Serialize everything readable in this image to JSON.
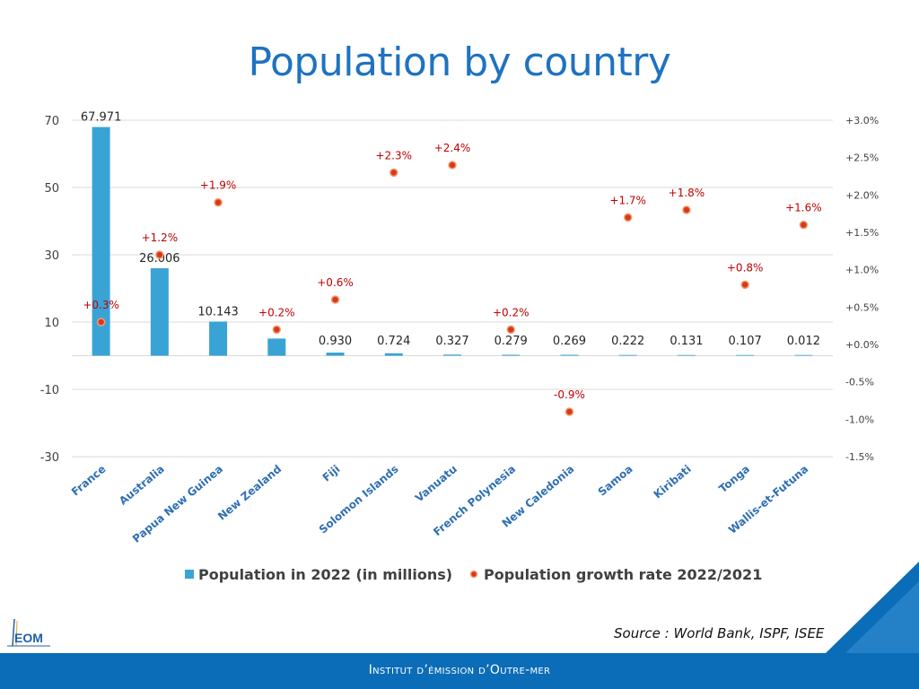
{
  "header": {
    "title": "Population by country"
  },
  "footer": {
    "source": "Source : World Bank, ISPF, ISEE",
    "institute": "Institut d’émission d’Outre-mer",
    "logo_text": "EOM"
  },
  "colors": {
    "title": "#1f72c0",
    "bar": "#3aa3d6",
    "dot_fill": "#d9381e",
    "dot_ring": "#f0a070",
    "growth_label": "#c00000",
    "footer": "#0b6db7"
  },
  "chart_data": {
    "type": "bar",
    "title": "Population by country",
    "categories": [
      "France",
      "Australia",
      "Papua New Guinea",
      "New Zealand",
      "Fiji",
      "Solomon Islands",
      "Vanuatu",
      "French Polynesia",
      "New Caledonia",
      "Samoa",
      "Kiribati",
      "Tonga",
      "Wallis-et-Futuna"
    ],
    "series": [
      {
        "name": "Population in 2022 (in millions)",
        "type": "bar",
        "axis": "left",
        "values": [
          67.971,
          26.006,
          10.143,
          5.1,
          0.93,
          0.724,
          0.327,
          0.279,
          0.269,
          0.222,
          0.131,
          0.107,
          0.012
        ],
        "labels": [
          "67.971",
          "26.006",
          "10.143",
          "",
          "0.930",
          "0.724",
          "0.327",
          "0.279",
          "0.269",
          "0.222",
          "0.131",
          "0.107",
          "0.012"
        ]
      },
      {
        "name": "Population growth rate 2022/2021",
        "type": "scatter",
        "axis": "right",
        "values": [
          0.3,
          1.2,
          1.9,
          0.2,
          0.6,
          2.3,
          2.4,
          0.2,
          -0.9,
          1.7,
          1.8,
          0.8,
          1.6
        ],
        "labels": [
          "+0.3%",
          "+1.2%",
          "+1.9%",
          "+0.2%",
          "+0.6%",
          "+2.3%",
          "+2.4%",
          "+0.2%",
          "-0.9%",
          "+1.7%",
          "+1.8%",
          "+0.8%",
          "+1.6%"
        ]
      }
    ],
    "y_left": {
      "ticks": [
        70,
        50,
        30,
        10,
        -10,
        -30
      ],
      "ylim": [
        -30,
        70
      ]
    },
    "y_right": {
      "ticks": [
        3.0,
        2.5,
        2.0,
        1.5,
        1.0,
        0.5,
        0.0,
        -0.5,
        -1.0,
        -1.5
      ],
      "tick_labels": [
        "+3.0%",
        "+2.5%",
        "+2.0%",
        "+1.5%",
        "+1.0%",
        "+0.5%",
        "+0.0%",
        "-0.5%",
        "-1.0%",
        "-1.5%"
      ],
      "ylim": [
        -1.5,
        3.0
      ]
    },
    "grid": true,
    "legend": [
      "Population in 2022 (in millions)",
      "Population growth rate 2022/2021"
    ],
    "legend_position": "bottom"
  }
}
